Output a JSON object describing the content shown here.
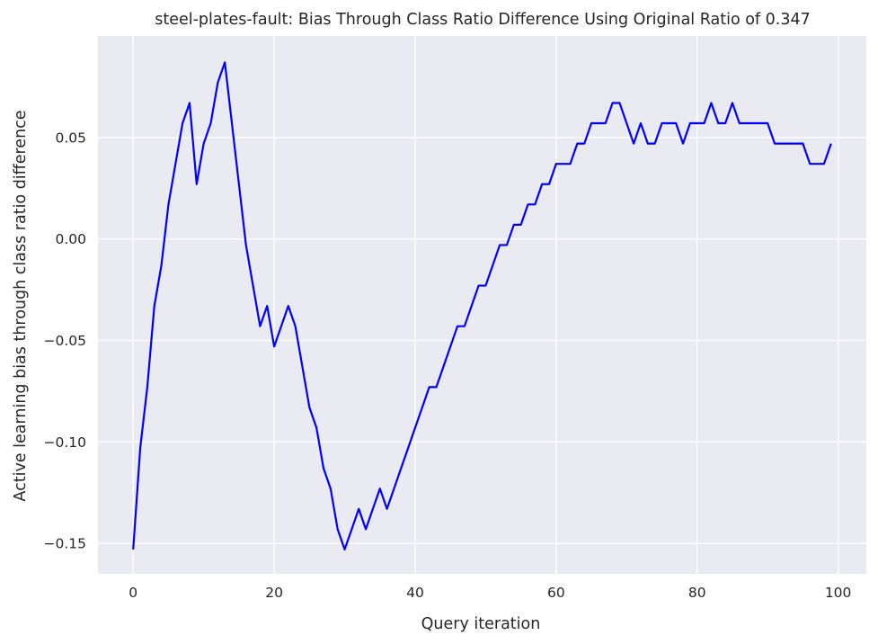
{
  "chart_data": {
    "type": "line",
    "title": "steel-plates-fault: Bias Through Class Ratio Difference Using Original Ratio of 0.347",
    "xlabel": "Query iteration",
    "ylabel": "Active learning bias through class ratio difference",
    "xlim": [
      -5,
      104
    ],
    "ylim": [
      -0.165,
      0.1
    ],
    "xticks": [
      0,
      20,
      40,
      60,
      80,
      100
    ],
    "xtick_labels": [
      "0",
      "20",
      "40",
      "60",
      "80",
      "100"
    ],
    "yticks": [
      -0.15,
      -0.1,
      -0.05,
      0.0,
      0.05
    ],
    "ytick_labels": [
      "−0.15",
      "−0.10",
      "−0.05",
      "0.00",
      "0.05"
    ],
    "grid": true,
    "background": "#eaeaf2",
    "series": [
      {
        "color": "#0000ff",
        "x": [
          0,
          1,
          2,
          3,
          4,
          5,
          6,
          7,
          8,
          9,
          10,
          11,
          12,
          13,
          14,
          15,
          16,
          17,
          18,
          19,
          20,
          21,
          22,
          23,
          24,
          25,
          26,
          27,
          28,
          29,
          30,
          31,
          32,
          33,
          34,
          35,
          36,
          37,
          38,
          39,
          40,
          41,
          42,
          43,
          44,
          45,
          46,
          47,
          48,
          49,
          50,
          51,
          52,
          53,
          54,
          55,
          56,
          57,
          58,
          59,
          60,
          61,
          62,
          63,
          64,
          65,
          66,
          67,
          68,
          69,
          70,
          71,
          72,
          73,
          74,
          75,
          76,
          77,
          78,
          79,
          80,
          81,
          82,
          83,
          84,
          85,
          86,
          87,
          88,
          89,
          90,
          91,
          92,
          93,
          94,
          95,
          96,
          97,
          98,
          99
        ],
        "y": [
          -0.153,
          -0.103,
          -0.073,
          -0.033,
          -0.013,
          0.017,
          0.037,
          0.057,
          0.067,
          0.027,
          0.047,
          0.057,
          0.077,
          0.087,
          0.057,
          0.027,
          -0.003,
          -0.023,
          -0.043,
          -0.033,
          -0.053,
          -0.043,
          -0.033,
          -0.043,
          -0.063,
          -0.083,
          -0.093,
          -0.113,
          -0.123,
          -0.143,
          -0.153,
          -0.143,
          -0.133,
          -0.143,
          -0.133,
          -0.123,
          -0.133,
          -0.123,
          -0.113,
          -0.103,
          -0.093,
          -0.083,
          -0.073,
          -0.073,
          -0.063,
          -0.053,
          -0.043,
          -0.043,
          -0.033,
          -0.023,
          -0.023,
          -0.013,
          -0.003,
          -0.003,
          0.007,
          0.007,
          0.017,
          0.017,
          0.027,
          0.027,
          0.037,
          0.037,
          0.037,
          0.047,
          0.047,
          0.057,
          0.057,
          0.057,
          0.067,
          0.067,
          0.057,
          0.047,
          0.057,
          0.047,
          0.047,
          0.057,
          0.057,
          0.057,
          0.047,
          0.057,
          0.057,
          0.057,
          0.067,
          0.057,
          0.057,
          0.067,
          0.057,
          0.057,
          0.057,
          0.057,
          0.057,
          0.047,
          0.047,
          0.047,
          0.047,
          0.047,
          0.037,
          0.037,
          0.037,
          0.047
        ]
      }
    ]
  }
}
